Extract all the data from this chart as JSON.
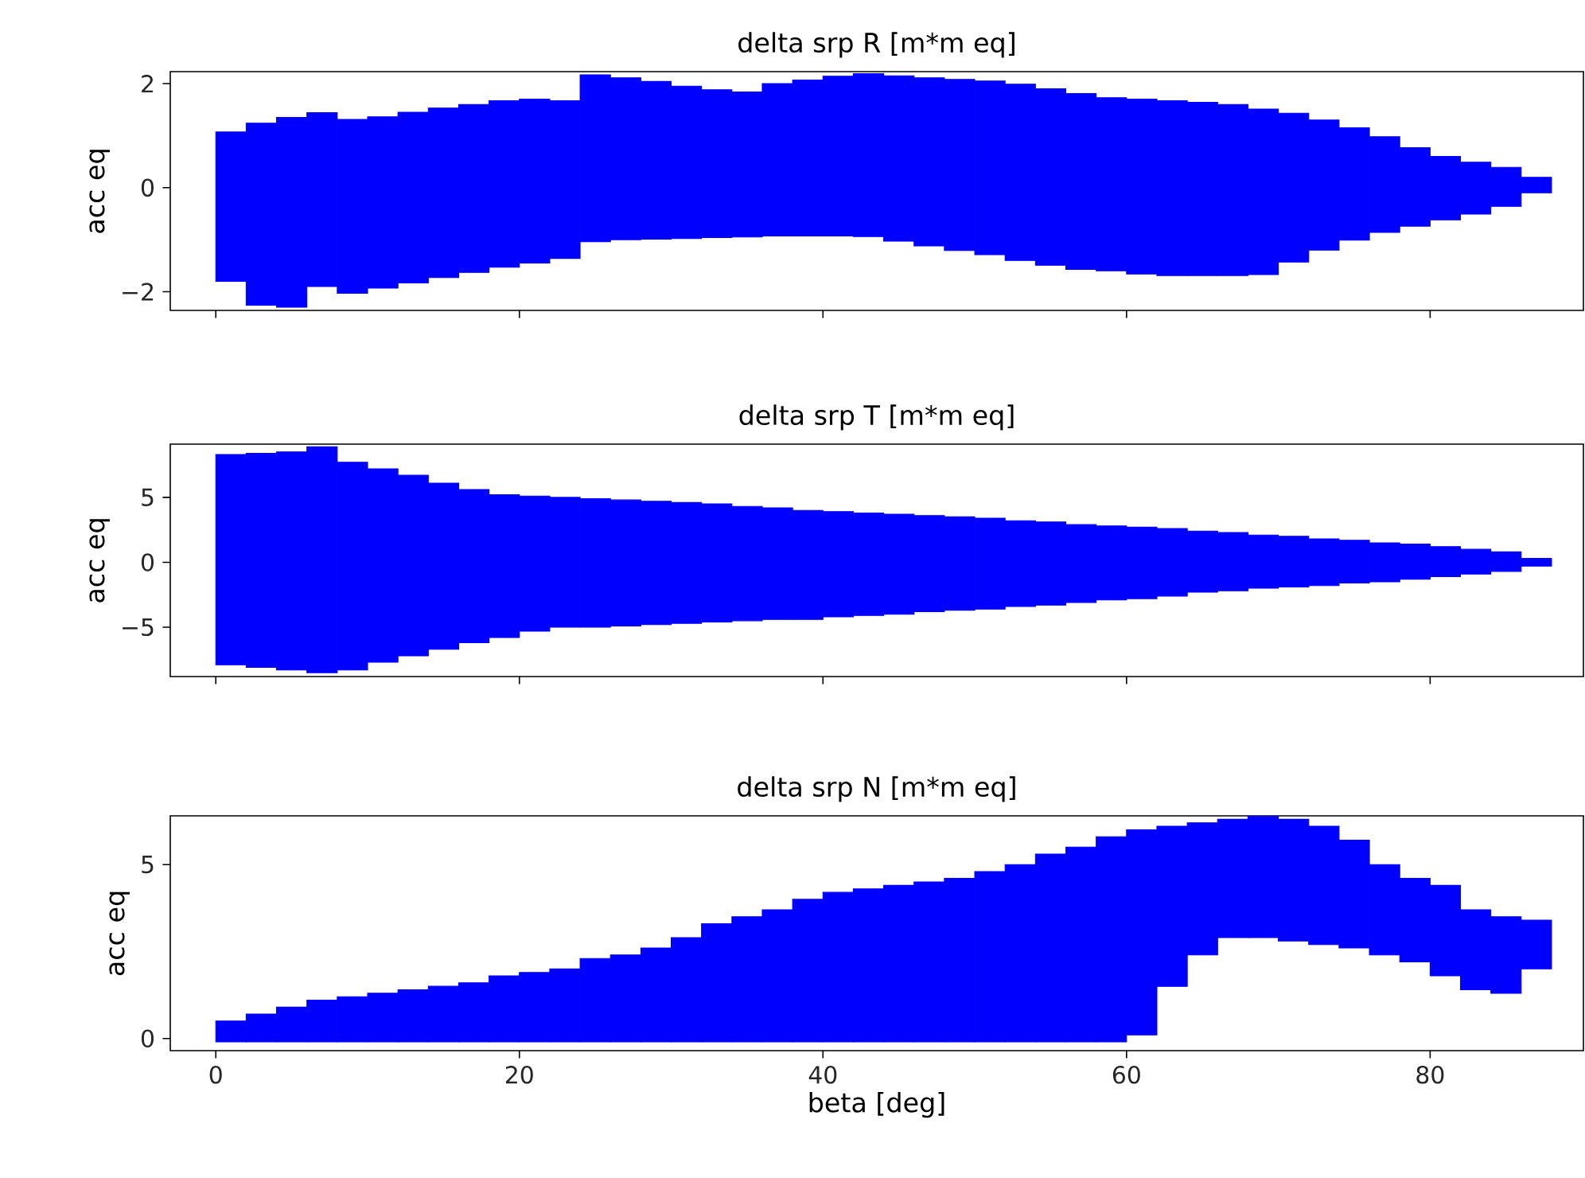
{
  "chart_data": [
    {
      "type": "bar",
      "title": "delta srp R [m*m eq]",
      "ylabel": "acc eq",
      "xlim": [
        -3.0,
        90.1
      ],
      "ylim": [
        -2.36,
        2.23
      ],
      "xticks": [
        0,
        20,
        40,
        60,
        80
      ],
      "yticks": [
        {
          "value": -2,
          "label": "−2"
        },
        0,
        2
      ],
      "tick_labels": "y",
      "series": [
        {
          "color": "#0000ff",
          "x": [
            1,
            3,
            5,
            7,
            9,
            11,
            13,
            15,
            17,
            19,
            21,
            23,
            25,
            27,
            29,
            31,
            33,
            35,
            37,
            39,
            41,
            43,
            45,
            47,
            49,
            51,
            53,
            55,
            57,
            59,
            61,
            63,
            65,
            67,
            69,
            71,
            73,
            75,
            77,
            79,
            81,
            83,
            85,
            87
          ],
          "base": [
            -1.8,
            -2.26,
            -2.3,
            -1.9,
            -2.03,
            -1.93,
            -1.83,
            -1.73,
            -1.63,
            -1.53,
            -1.45,
            -1.36,
            -1.04,
            -1.0,
            -0.99,
            -0.98,
            -0.96,
            -0.95,
            -0.93,
            -0.93,
            -0.93,
            -0.94,
            -1.03,
            -1.12,
            -1.21,
            -1.29,
            -1.4,
            -1.49,
            -1.57,
            -1.6,
            -1.66,
            -1.69,
            -1.69,
            -1.69,
            -1.67,
            -1.43,
            -1.2,
            -1.01,
            -0.86,
            -0.74,
            -0.62,
            -0.51,
            -0.36,
            -0.1
          ],
          "values": [
            2.87,
            3.5,
            3.65,
            3.34,
            3.34,
            3.29,
            3.28,
            3.26,
            3.23,
            3.2,
            3.15,
            3.03,
            3.21,
            3.11,
            3.03,
            2.93,
            2.84,
            2.79,
            2.93,
            3.0,
            3.07,
            3.13,
            3.18,
            3.23,
            3.29,
            3.34,
            3.39,
            3.39,
            3.38,
            3.33,
            3.36,
            3.36,
            3.33,
            3.29,
            3.18,
            2.86,
            2.5,
            2.16,
            1.84,
            1.51,
            1.22,
            1.0,
            0.75,
            0.3
          ]
        }
      ]
    },
    {
      "type": "bar",
      "title": "delta srp T [m*m eq]",
      "ylabel": "acc eq",
      "xlim": [
        -3.0,
        90.1
      ],
      "ylim": [
        -8.8,
        9.1
      ],
      "xticks": [
        0,
        20,
        40,
        60,
        80
      ],
      "yticks": [
        {
          "value": -5,
          "label": "−5"
        },
        0,
        5
      ],
      "tick_labels": "y",
      "series": [
        {
          "color": "#0000ff",
          "x": [
            1,
            3,
            5,
            7,
            9,
            11,
            13,
            15,
            17,
            19,
            21,
            23,
            25,
            27,
            29,
            31,
            33,
            35,
            37,
            39,
            41,
            43,
            45,
            47,
            49,
            51,
            53,
            55,
            57,
            59,
            61,
            63,
            65,
            67,
            69,
            71,
            73,
            75,
            77,
            79,
            81,
            83,
            85,
            87
          ],
          "base": [
            -7.9,
            -8.1,
            -8.3,
            -8.5,
            -8.3,
            -7.7,
            -7.2,
            -6.7,
            -6.2,
            -5.8,
            -5.3,
            -5.0,
            -5.0,
            -4.9,
            -4.8,
            -4.7,
            -4.6,
            -4.5,
            -4.4,
            -4.4,
            -4.2,
            -4.1,
            -4.0,
            -3.8,
            -3.7,
            -3.6,
            -3.4,
            -3.3,
            -3.1,
            -2.9,
            -2.8,
            -2.6,
            -2.3,
            -2.2,
            -2.0,
            -1.9,
            -1.8,
            -1.6,
            -1.5,
            -1.3,
            -1.1,
            -0.9,
            -0.7,
            -0.3
          ],
          "values": [
            16.2,
            16.5,
            16.8,
            17.4,
            16.0,
            14.9,
            13.9,
            12.8,
            11.8,
            11.0,
            10.4,
            10.0,
            9.9,
            9.7,
            9.5,
            9.3,
            9.1,
            8.8,
            8.6,
            8.4,
            8.1,
            7.9,
            7.7,
            7.4,
            7.2,
            7.0,
            6.6,
            6.4,
            6.0,
            5.7,
            5.5,
            5.2,
            4.7,
            4.5,
            4.1,
            3.9,
            3.6,
            3.3,
            3.0,
            2.7,
            2.3,
            1.9,
            1.5,
            0.6
          ]
        }
      ]
    },
    {
      "type": "bar",
      "title": "delta srp N [m*m eq]",
      "ylabel": "acc eq",
      "xlabel": "beta [deg]",
      "xlim": [
        -3.0,
        90.1
      ],
      "ylim": [
        -0.35,
        6.4
      ],
      "xticks": [
        0,
        20,
        40,
        60,
        80
      ],
      "yticks": [
        0,
        5
      ],
      "series": [
        {
          "color": "#0000ff",
          "x": [
            1,
            3,
            5,
            7,
            9,
            11,
            13,
            15,
            17,
            19,
            21,
            23,
            25,
            27,
            29,
            31,
            33,
            35,
            37,
            39,
            41,
            43,
            45,
            47,
            49,
            51,
            53,
            55,
            57,
            59,
            61,
            63,
            65,
            67,
            69,
            71,
            73,
            75,
            77,
            79,
            81,
            83,
            85,
            87
          ],
          "base": [
            -0.1,
            -0.1,
            -0.1,
            -0.1,
            -0.1,
            -0.1,
            -0.1,
            -0.1,
            -0.1,
            -0.1,
            -0.1,
            -0.1,
            -0.1,
            -0.1,
            -0.1,
            -0.1,
            -0.1,
            -0.1,
            -0.1,
            -0.1,
            -0.1,
            -0.1,
            -0.1,
            -0.1,
            -0.1,
            -0.1,
            -0.1,
            -0.1,
            -0.1,
            -0.1,
            0.1,
            1.5,
            2.4,
            2.9,
            2.9,
            2.8,
            2.7,
            2.6,
            2.4,
            2.2,
            1.8,
            1.4,
            1.3,
            2.0
          ],
          "values": [
            0.6,
            0.8,
            1.0,
            1.2,
            1.3,
            1.4,
            1.5,
            1.6,
            1.7,
            1.9,
            2.0,
            2.1,
            2.4,
            2.5,
            2.7,
            3.0,
            3.4,
            3.6,
            3.8,
            4.1,
            4.3,
            4.4,
            4.5,
            4.6,
            4.7,
            4.9,
            5.1,
            5.4,
            5.6,
            5.9,
            5.9,
            4.6,
            3.8,
            3.4,
            3.5,
            3.5,
            3.4,
            3.1,
            2.6,
            2.4,
            2.6,
            2.3,
            2.2,
            1.4
          ]
        }
      ]
    }
  ]
}
